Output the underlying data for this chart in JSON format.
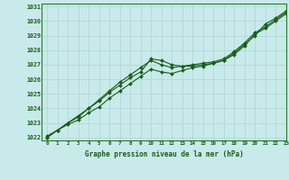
{
  "title": "Graphe pression niveau de la mer (hPa)",
  "background_color": "#c8eaea",
  "grid_color": "#aed4d4",
  "line_color": "#1a5c1a",
  "xlim": [
    -0.5,
    23
  ],
  "ylim": [
    1021.8,
    1031.2
  ],
  "xticks": [
    0,
    1,
    2,
    3,
    4,
    5,
    6,
    7,
    8,
    9,
    10,
    11,
    12,
    13,
    14,
    15,
    16,
    17,
    18,
    19,
    20,
    21,
    22,
    23
  ],
  "yticks": [
    1022,
    1023,
    1024,
    1025,
    1026,
    1027,
    1028,
    1029,
    1030,
    1031
  ],
  "series": [
    [
      1022.1,
      1022.5,
      1023.0,
      1023.4,
      1024.0,
      1024.5,
      1025.1,
      1025.6,
      1026.1,
      1026.5,
      1027.4,
      1027.3,
      1027.0,
      1026.9,
      1026.9,
      1027.0,
      1027.1,
      1027.3,
      1027.7,
      1028.3,
      1029.1,
      1029.5,
      1030.0,
      1030.5
    ],
    [
      1022.0,
      1022.5,
      1022.9,
      1023.2,
      1023.7,
      1024.1,
      1024.7,
      1025.2,
      1025.7,
      1026.2,
      1026.7,
      1026.5,
      1026.4,
      1026.6,
      1026.8,
      1026.9,
      1027.1,
      1027.3,
      1027.8,
      1028.4,
      1029.0,
      1029.8,
      1030.2,
      1030.7
    ],
    [
      1022.0,
      1022.5,
      1023.0,
      1023.5,
      1024.0,
      1024.6,
      1025.2,
      1025.8,
      1026.3,
      1026.8,
      1027.3,
      1027.0,
      1026.8,
      1026.9,
      1027.0,
      1027.1,
      1027.2,
      1027.4,
      1027.9,
      1028.5,
      1029.2,
      1029.6,
      1030.1,
      1030.6
    ]
  ]
}
